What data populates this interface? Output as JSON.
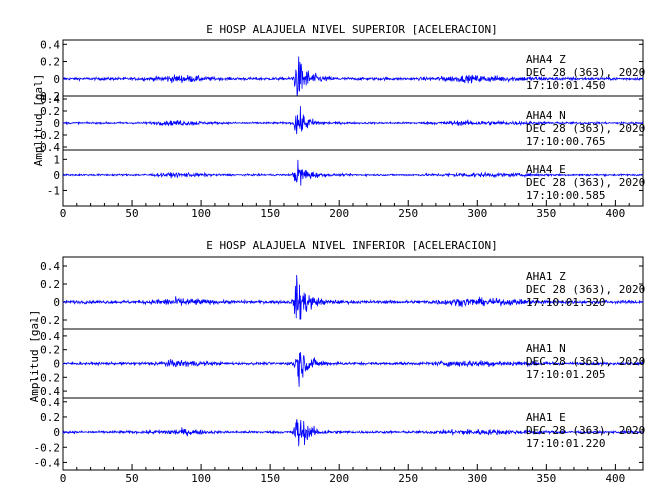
{
  "chart_data": [
    {
      "type": "line",
      "title": "E HOSP ALAJUELA NIVEL SUPERIOR [ACELERACION]",
      "ylabel": "Amplitud [gal]",
      "xlim": [
        0,
        420
      ],
      "xticks": [
        0,
        50,
        100,
        150,
        200,
        250,
        300,
        350,
        400
      ],
      "trace_color": "#0000ff",
      "traces": [
        {
          "station": "AHA4",
          "component": "Z",
          "date": "DEC 28 (363), 2020",
          "time": "17:10:01.450",
          "ylim": [
            -0.2,
            0.45
          ],
          "yticks": [
            0.4,
            0.2,
            0.0,
            -0.2
          ],
          "peak": 0.44,
          "peak_time": 170
        },
        {
          "station": "AHA4",
          "component": "N",
          "date": "DEC 28 (363), 2020",
          "time": "17:10:00.765",
          "ylim": [
            -0.45,
            0.45
          ],
          "yticks": [
            0.4,
            0.2,
            0.0,
            -0.2,
            -0.4
          ],
          "peak": 0.42,
          "peak_time": 170
        },
        {
          "station": "AHA4",
          "component": "E",
          "date": "DEC 28 (363), 2020",
          "time": "17:10:00.585",
          "ylim": [
            -2,
            1.6
          ],
          "yticks": [
            1,
            0,
            -1
          ],
          "peak": 1.5,
          "peak_time": 170
        }
      ]
    },
    {
      "type": "line",
      "title": "E HOSP ALAJUELA NIVEL INFERIOR [ACELERACION]",
      "ylabel": "Amplitud [gal]",
      "xlim": [
        0,
        420
      ],
      "xticks": [
        0,
        50,
        100,
        150,
        200,
        250,
        300,
        350,
        400
      ],
      "trace_color": "#0000ff",
      "traces": [
        {
          "station": "AHA1",
          "component": "Z",
          "date": "DEC 28 (363), 2020",
          "time": "17:10:01.320",
          "ylim": [
            -0.3,
            0.5
          ],
          "yticks": [
            0.4,
            0.2,
            0.0,
            -0.2
          ],
          "peak": 0.46,
          "peak_time": 170
        },
        {
          "station": "AHA1",
          "component": "N",
          "date": "DEC 28 (363), 2020",
          "time": "17:10:01.205",
          "ylim": [
            -0.5,
            0.5
          ],
          "yticks": [
            0.4,
            0.2,
            0.0,
            -0.2,
            -0.4
          ],
          "peak": 0.5,
          "peak_time": 170
        },
        {
          "station": "AHA1",
          "component": "E",
          "date": "DEC 28 (363), 2020",
          "time": "17:10:01.220",
          "ylim": [
            -0.5,
            0.45
          ],
          "yticks": [
            0.4,
            0.2,
            0.0,
            -0.2,
            -0.4
          ],
          "peak": 0.42,
          "peak_time": 170
        }
      ]
    }
  ]
}
